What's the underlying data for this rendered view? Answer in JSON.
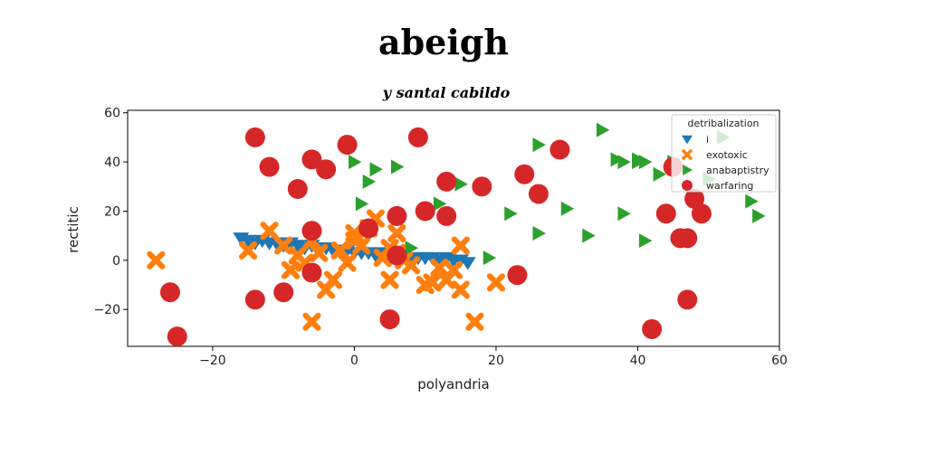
{
  "chart_data": {
    "type": "scatter",
    "title": "abeigh",
    "subtitle": "y santal cabildo",
    "xlabel": "polyandria",
    "ylabel": "rectitic",
    "xlim": [
      -32,
      60
    ],
    "ylim": [
      -35,
      61
    ],
    "xticks": [
      -20,
      0,
      20,
      40,
      60
    ],
    "yticks": [
      -20,
      0,
      20,
      40,
      60
    ],
    "xtick_labels": [
      "−20",
      "0",
      "20",
      "40",
      "60"
    ],
    "ytick_labels": [
      "−20",
      "0",
      "20",
      "40",
      "60"
    ],
    "grid": false,
    "legend": {
      "title": "detribalization",
      "placement": "top-right"
    },
    "series": [
      {
        "name": "i",
        "marker": "triangle-down",
        "color": "#1f77b4",
        "points": [
          [
            -16,
            9
          ],
          [
            -15,
            8
          ],
          [
            -14,
            7
          ],
          [
            -13,
            8
          ],
          [
            -12,
            7
          ],
          [
            -11,
            7
          ],
          [
            -10,
            6
          ],
          [
            -9,
            7
          ],
          [
            -8,
            6
          ],
          [
            -7,
            5
          ],
          [
            -6,
            6
          ],
          [
            -5,
            5
          ],
          [
            -4,
            5
          ],
          [
            -3,
            4
          ],
          [
            -2,
            4
          ],
          [
            -1,
            4
          ],
          [
            0,
            3
          ],
          [
            1,
            3
          ],
          [
            2,
            3
          ],
          [
            3,
            2
          ],
          [
            4,
            3
          ],
          [
            5,
            2
          ],
          [
            6,
            2
          ],
          [
            7,
            2
          ],
          [
            8,
            1
          ],
          [
            9,
            1
          ],
          [
            10,
            1
          ],
          [
            11,
            1
          ],
          [
            12,
            0
          ],
          [
            13,
            1
          ],
          [
            14,
            0
          ],
          [
            15,
            0
          ],
          [
            16,
            -1
          ]
        ]
      },
      {
        "name": "exotoxic",
        "marker": "x-filled",
        "color": "#ff7f0e",
        "points": [
          [
            -28,
            0
          ],
          [
            -15,
            4
          ],
          [
            -12,
            12
          ],
          [
            -10,
            6
          ],
          [
            -9,
            -4
          ],
          [
            -8,
            2
          ],
          [
            -7,
            -1
          ],
          [
            -6,
            8
          ],
          [
            -6,
            -25
          ],
          [
            -5,
            3
          ],
          [
            -4,
            -12
          ],
          [
            -3,
            -8
          ],
          [
            -2,
            4
          ],
          [
            -1,
            -1
          ],
          [
            0,
            8
          ],
          [
            0,
            11
          ],
          [
            1,
            6
          ],
          [
            2,
            13
          ],
          [
            3,
            17
          ],
          [
            4,
            1
          ],
          [
            5,
            5
          ],
          [
            5,
            -8
          ],
          [
            6,
            3
          ],
          [
            6,
            11
          ],
          [
            7,
            0
          ],
          [
            8,
            -2
          ],
          [
            10,
            -10
          ],
          [
            11,
            -9
          ],
          [
            12,
            -3
          ],
          [
            13,
            -8
          ],
          [
            14,
            -4
          ],
          [
            15,
            6
          ],
          [
            15,
            -12
          ],
          [
            17,
            -25
          ],
          [
            20,
            -9
          ]
        ]
      },
      {
        "name": "anabaptistry",
        "marker": "triangle-right",
        "color": "#2ca02c",
        "points": [
          [
            0,
            40
          ],
          [
            1,
            23
          ],
          [
            2,
            32
          ],
          [
            3,
            37
          ],
          [
            6,
            38
          ],
          [
            8,
            5
          ],
          [
            12,
            23
          ],
          [
            15,
            31
          ],
          [
            19,
            1
          ],
          [
            22,
            19
          ],
          [
            26,
            47
          ],
          [
            26,
            11
          ],
          [
            30,
            21
          ],
          [
            33,
            10
          ],
          [
            35,
            53
          ],
          [
            37,
            41
          ],
          [
            38,
            40
          ],
          [
            40,
            41
          ],
          [
            40,
            40
          ],
          [
            41,
            8
          ],
          [
            41,
            40
          ],
          [
            43,
            35
          ],
          [
            45,
            40
          ],
          [
            47,
            8
          ],
          [
            50,
            33
          ],
          [
            52,
            50
          ],
          [
            56,
            24
          ],
          [
            57,
            18
          ],
          [
            38,
            19
          ]
        ]
      },
      {
        "name": "warfaring",
        "marker": "circle",
        "color": "#d62728",
        "points": [
          [
            -26,
            -13
          ],
          [
            -25,
            -31
          ],
          [
            -14,
            50
          ],
          [
            -14,
            -16
          ],
          [
            -12,
            38
          ],
          [
            -10,
            -13
          ],
          [
            -8,
            29
          ],
          [
            -6,
            41
          ],
          [
            -6,
            12
          ],
          [
            -6,
            -5
          ],
          [
            -4,
            37
          ],
          [
            -1,
            47
          ],
          [
            2,
            13
          ],
          [
            5,
            -24
          ],
          [
            6,
            18
          ],
          [
            6,
            2
          ],
          [
            9,
            50
          ],
          [
            10,
            20
          ],
          [
            13,
            32
          ],
          [
            13,
            18
          ],
          [
            18,
            30
          ],
          [
            23,
            -6
          ],
          [
            24,
            35
          ],
          [
            26,
            27
          ],
          [
            29,
            45
          ],
          [
            42,
            -28
          ],
          [
            44,
            19
          ],
          [
            45,
            38
          ],
          [
            46,
            9
          ],
          [
            47,
            -16
          ],
          [
            47,
            9
          ],
          [
            48,
            25
          ],
          [
            49,
            19
          ]
        ]
      }
    ]
  }
}
